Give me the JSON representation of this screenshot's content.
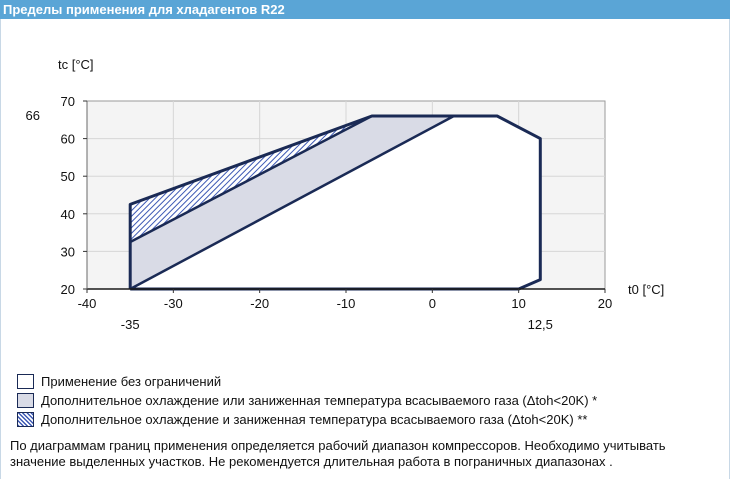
{
  "window": {
    "title": "Пределы применения для хладагентов R22"
  },
  "chart_data": {
    "type": "area",
    "ylabel": "tc [°C]",
    "xlabel": "t0 [°C]",
    "xlim": [
      -40,
      20
    ],
    "ylim": [
      20,
      70
    ],
    "x_ticks": [
      "-40",
      "-30",
      "-20",
      "-10",
      "0",
      "10",
      "20"
    ],
    "x_tick_values": [
      -40,
      -30,
      -20,
      -10,
      0,
      10,
      20
    ],
    "y_ticks": [
      "70",
      "60",
      "50",
      "40",
      "30",
      "20"
    ],
    "y_tick_values": [
      70,
      60,
      50,
      40,
      30,
      20
    ],
    "extra_x_labels": [
      {
        "value": -35,
        "text": "-35"
      },
      {
        "value": 12.5,
        "text": "12,5"
      }
    ],
    "extra_y_labels": [
      {
        "value": 66,
        "text": "66"
      }
    ],
    "regions": [
      {
        "name": "Применение без ограничений",
        "fill": "#ffffff",
        "pattern": "none",
        "points": [
          [
            -35,
            32.5
          ],
          [
            -7,
            66
          ],
          [
            7.5,
            66
          ],
          [
            12.5,
            60
          ],
          [
            12.5,
            22.5
          ],
          [
            10,
            20
          ],
          [
            -35,
            20
          ]
        ]
      },
      {
        "name": "Дополнительное охлаждение или заниженная температура всасываемого газа (Δtoh<20K) *",
        "fill": "#d9dbe6",
        "pattern": "none",
        "points": [
          [
            -35,
            20
          ],
          [
            -35,
            32.5
          ],
          [
            -7,
            66
          ],
          [
            2.5,
            66
          ]
        ]
      },
      {
        "name": "Дополнительное охлаждение и заниженная температура всасываемого газа (Δtoh<20K) **",
        "fill": "#3c58b4",
        "pattern": "hatch",
        "points": [
          [
            -35,
            42.5
          ],
          [
            -35,
            32.5
          ],
          [
            -7,
            66
          ]
        ]
      }
    ],
    "outline": [
      [
        -35,
        20
      ],
      [
        -35,
        42.5
      ],
      [
        -7,
        66
      ],
      [
        7.5,
        66
      ],
      [
        12.5,
        60
      ],
      [
        12.5,
        22.5
      ],
      [
        10,
        20
      ],
      [
        -35,
        20
      ]
    ],
    "inner_lines": [
      [
        [
          -35,
          32.5
        ],
        [
          -7,
          66
        ]
      ],
      [
        [
          -35,
          20
        ],
        [
          2.5,
          66
        ]
      ]
    ],
    "grid": true,
    "legend_position": "bottom"
  },
  "legend": {
    "items": [
      {
        "label": "Применение без ограничений",
        "swatch": "plain"
      },
      {
        "label": "Дополнительное охлаждение или заниженная температура всасываемого газа (Δtoh<20K) *",
        "swatch": "gray"
      },
      {
        "label": "Дополнительное охлаждение и заниженная температура всасываемого газа (Δtoh<20K) **",
        "swatch": "hatch"
      }
    ]
  },
  "note": {
    "text": "По диаграммам границ применения определяется рабочий диапазон компрессоров. Необходимо учитывать значение выделенных участков. Не рекомендуется длительная работа в пограничных диапазонах ."
  },
  "colors": {
    "title_bar": "#5aa5d6",
    "plot_bg": "#f4f4f4",
    "outline": "#1a2a55",
    "gray_fill": "#d9dbe6",
    "hatch": "#3c58b4"
  }
}
